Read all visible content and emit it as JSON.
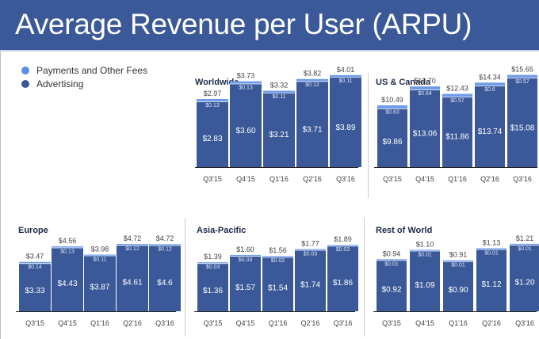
{
  "header": {
    "title": "Average Revenue per User (ARPU)"
  },
  "legend": [
    {
      "label": "Payments and Other Fees",
      "color": "#5b8ded"
    },
    {
      "label": "Advertising",
      "color": "#3b5998"
    }
  ],
  "colors": {
    "advertising": "#3b5998",
    "payments": "#6f9ae8",
    "header": "#3b5998"
  },
  "chart_data": [
    {
      "type": "bar",
      "stacked": true,
      "title": "Worldwide",
      "categories": [
        "Q3'15",
        "Q4'15",
        "Q1'16",
        "Q2'16",
        "Q3'16"
      ],
      "series": [
        {
          "name": "Advertising",
          "values": [
            2.83,
            3.6,
            3.21,
            3.71,
            3.89
          ],
          "labels": [
            "$2.83",
            "$3.60",
            "$3.21",
            "$3.71",
            "$3.89"
          ]
        },
        {
          "name": "Payments and Other Fees",
          "values": [
            0.13,
            0.13,
            0.11,
            0.12,
            0.11
          ],
          "labels": [
            "$0.13",
            "$0.13",
            "$0.11",
            "$0.12",
            "$0.11"
          ]
        }
      ],
      "totals": [
        2.97,
        3.73,
        3.32,
        3.82,
        4.01
      ],
      "total_labels": [
        "$2.97",
        "$3.73",
        "$3.32",
        "$3.82",
        "$4.01"
      ],
      "ylim": [
        0,
        4.2
      ]
    },
    {
      "type": "bar",
      "stacked": true,
      "title": "US & Canada",
      "categories": [
        "Q3'15",
        "Q4'15",
        "Q1'16",
        "Q2'16",
        "Q3'16"
      ],
      "series": [
        {
          "name": "Advertising",
          "values": [
            9.86,
            13.06,
            11.86,
            13.74,
            15.08
          ],
          "labels": [
            "$9.86",
            "$13.06",
            "$11.86",
            "$13.74",
            "$15.08"
          ]
        },
        {
          "name": "Payments and Other Fees",
          "values": [
            0.63,
            0.64,
            0.57,
            0.6,
            0.57
          ],
          "labels": [
            "$0.63",
            "$0.64",
            "$0.57",
            "$0.6",
            "$0.57"
          ]
        }
      ],
      "totals": [
        10.49,
        13.7,
        12.43,
        14.34,
        15.65
      ],
      "total_labels": [
        "$10.49",
        "$13.70",
        "$12.43",
        "$14.34",
        "$15.65"
      ],
      "ylim": [
        0,
        16.4
      ]
    },
    {
      "type": "bar",
      "stacked": true,
      "title": "Europe",
      "categories": [
        "Q3'15",
        "Q4'15",
        "Q1'16",
        "Q2'16",
        "Q3'16"
      ],
      "series": [
        {
          "name": "Advertising",
          "values": [
            3.33,
            4.43,
            3.87,
            4.61,
            4.6
          ],
          "labels": [
            "$3.33",
            "$4.43",
            "$3.87",
            "$4.61",
            "$4.6"
          ]
        },
        {
          "name": "Payments and Other Fees",
          "values": [
            0.14,
            0.13,
            0.11,
            0.12,
            0.12
          ],
          "labels": [
            "$0.14",
            "$0.13",
            "$0.11",
            "$0.12",
            "$0.12"
          ]
        }
      ],
      "totals": [
        3.47,
        4.56,
        3.98,
        4.72,
        4.72
      ],
      "total_labels": [
        "$3.47",
        "$4.56",
        "$3.98",
        "$4.72",
        "$4.72"
      ],
      "ylim": [
        0,
        4.9
      ]
    },
    {
      "type": "bar",
      "stacked": true,
      "title": "Asia-Pacific",
      "categories": [
        "Q3'15",
        "Q4'15",
        "Q1'16",
        "Q2'16",
        "Q3'16"
      ],
      "series": [
        {
          "name": "Advertising",
          "values": [
            1.36,
            1.57,
            1.54,
            1.74,
            1.86
          ],
          "labels": [
            "$1.36",
            "$1.57",
            "$1.54",
            "$1.74",
            "$1.86"
          ]
        },
        {
          "name": "Payments and Other Fees",
          "values": [
            0.03,
            0.03,
            0.02,
            0.03,
            0.03
          ],
          "labels": [
            "$0.03",
            "$0.03",
            "$0.02",
            "$0.03",
            "$0.03"
          ]
        }
      ],
      "totals": [
        1.39,
        1.6,
        1.56,
        1.77,
        1.89
      ],
      "total_labels": [
        "$1.39",
        "$1.60",
        "$1.56",
        "$1.77",
        "$1.89"
      ],
      "ylim": [
        0,
        2.0
      ]
    },
    {
      "type": "bar",
      "stacked": true,
      "title": "Rest of World",
      "categories": [
        "Q3'15",
        "Q4'15",
        "Q1'16",
        "Q2'16",
        "Q3'16"
      ],
      "series": [
        {
          "name": "Advertising",
          "values": [
            0.92,
            1.09,
            0.9,
            1.12,
            1.2
          ],
          "labels": [
            "$0.92",
            "$1.09",
            "$0.90",
            "$1.12",
            "$1.20"
          ]
        },
        {
          "name": "Payments and Other Fees",
          "values": [
            0.01,
            0.01,
            0.01,
            0.01,
            0.01
          ],
          "labels": [
            "$0.01",
            "$0.01",
            "$0.01",
            "$0.01",
            "$0.01"
          ]
        }
      ],
      "totals": [
        0.94,
        1.1,
        0.91,
        1.13,
        1.21
      ],
      "total_labels": [
        "$0.94",
        "$1.10",
        "$0.91",
        "$1.13",
        "$1.21"
      ],
      "ylim": [
        0,
        1.27
      ]
    }
  ]
}
